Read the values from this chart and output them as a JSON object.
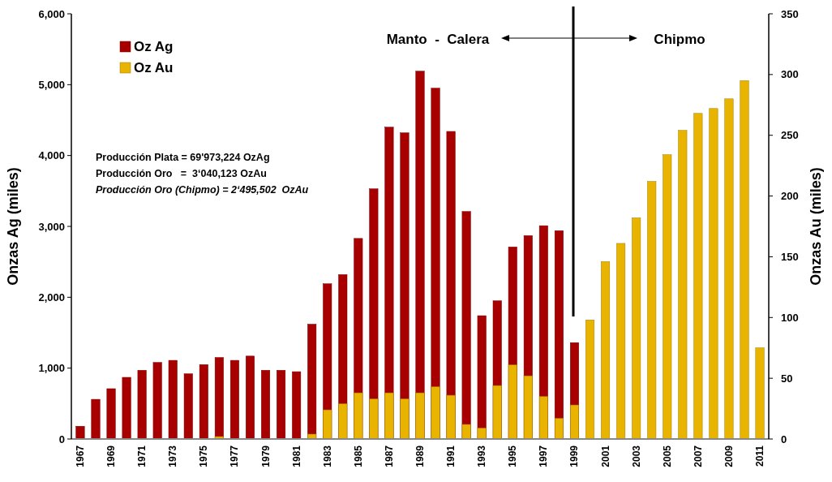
{
  "chart_data": {
    "type": "bar",
    "xlabel": null,
    "ylabel": "Onzas Ag (miles)",
    "y2label": "Onzas Au (miles)",
    "categories": [
      "1967",
      null,
      "1969",
      null,
      "1971",
      null,
      "1973",
      null,
      "1975",
      null,
      "1977",
      null,
      "1979",
      null,
      "1981",
      null,
      "1983",
      null,
      "1985",
      null,
      "1987",
      null,
      "1989",
      null,
      "1991",
      null,
      "1993",
      null,
      "1995",
      null,
      "1997",
      null,
      "1999",
      null,
      "2001",
      null,
      "2003",
      null,
      "2005",
      null,
      "2007",
      null,
      "2009",
      null,
      "2011"
    ],
    "series": [
      {
        "name": "Oz Ag",
        "color": "#a80000",
        "values": [
          180,
          560,
          710,
          870,
          970,
          1080,
          1110,
          920,
          1050,
          1150,
          1110,
          1170,
          970,
          970,
          950,
          1620,
          2190,
          2320,
          2830,
          3530,
          4400,
          4320,
          5190,
          4950,
          4340,
          3210,
          1740,
          1950,
          2710,
          2870,
          3010,
          2940,
          1360,
          null,
          null,
          null,
          null,
          null,
          null,
          null,
          null,
          null,
          null,
          null,
          null
        ]
      },
      {
        "name": "Oz Au",
        "color": "#e8b400",
        "axis": "y2",
        "values": [
          0,
          0,
          0,
          0,
          0,
          0,
          0,
          0,
          0,
          2,
          0,
          0,
          0,
          0,
          0,
          4,
          24,
          29,
          38,
          33,
          38,
          33,
          38,
          43,
          36,
          12,
          9,
          44,
          61,
          52,
          35,
          17,
          28,
          98,
          146,
          161,
          182,
          212,
          234,
          254,
          268,
          272,
          280,
          295,
          75
        ]
      }
    ],
    "ylim": [
      0,
      6000
    ],
    "yticks": [
      {
        "value": 0,
        "label": "0"
      },
      {
        "value": 1000,
        "label": "1,000"
      },
      {
        "value": 2000,
        "label": "2,000"
      },
      {
        "value": 3000,
        "label": "3,000"
      },
      {
        "value": 4000,
        "label": "4,000"
      },
      {
        "value": 5000,
        "label": "5,000"
      },
      {
        "value": 6000,
        "label": "6,000"
      }
    ],
    "y2lim": [
      0,
      350
    ],
    "y2ticks": [
      0,
      50,
      100,
      150,
      200,
      250,
      300,
      350
    ],
    "legend": "top left",
    "annotations": [
      "Producción Plata = 69'973,224 OzAg",
      "Producción Oro   =  3‘040,123 OzAu",
      "Producción Oro (Chipmo) = 2‘495,502  OzAu",
      "Manto  -  Calera",
      "Chipmo"
    ]
  }
}
